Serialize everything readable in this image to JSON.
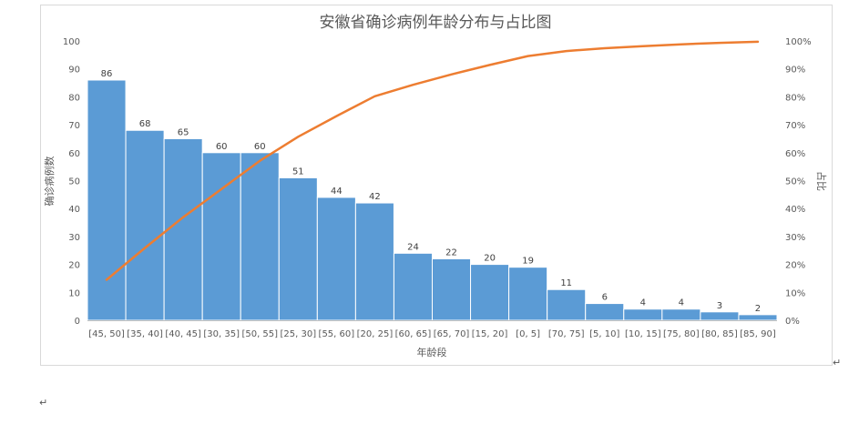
{
  "chart_data": {
    "type": "bar",
    "title": "安徽省确诊病例年龄分布与占比图",
    "xlabel": "年龄段",
    "ylabel": "确诊病例数",
    "y2label": "占比",
    "ylim": [
      0,
      100
    ],
    "y2lim": [
      0,
      1
    ],
    "yticks": [
      "0",
      "10",
      "20",
      "30",
      "40",
      "50",
      "60",
      "70",
      "80",
      "90",
      "100"
    ],
    "y2ticks": [
      "0%",
      "10%",
      "20%",
      "30%",
      "40%",
      "50%",
      "60%",
      "70%",
      "80%",
      "90%",
      "100%"
    ],
    "categories": [
      "[45, 50]",
      "[35, 40]",
      "[40, 45]",
      "[30, 35]",
      "[50, 55]",
      "[25, 30]",
      "[55, 60]",
      "[20, 25]",
      "[60, 65]",
      "[65, 70]",
      "[15, 20]",
      "[0, 5]",
      "[70, 75]",
      "[5, 10]",
      "[10, 15]",
      "[75, 80]",
      "[80, 85]",
      "[85, 90]"
    ],
    "values": [
      86,
      68,
      65,
      60,
      60,
      51,
      44,
      42,
      24,
      22,
      20,
      19,
      11,
      6,
      4,
      4,
      3,
      2
    ],
    "line_values": [
      0.145,
      0.259,
      0.369,
      0.47,
      0.571,
      0.657,
      0.731,
      0.802,
      0.843,
      0.88,
      0.914,
      0.946,
      0.964,
      0.974,
      0.981,
      0.988,
      0.993,
      0.997
    ],
    "grid": false,
    "colors": {
      "bar": "#5b9bd5",
      "line": "#ed7d31",
      "text": "#595959",
      "title": "#595959"
    }
  },
  "paragraph_mark": "↵"
}
